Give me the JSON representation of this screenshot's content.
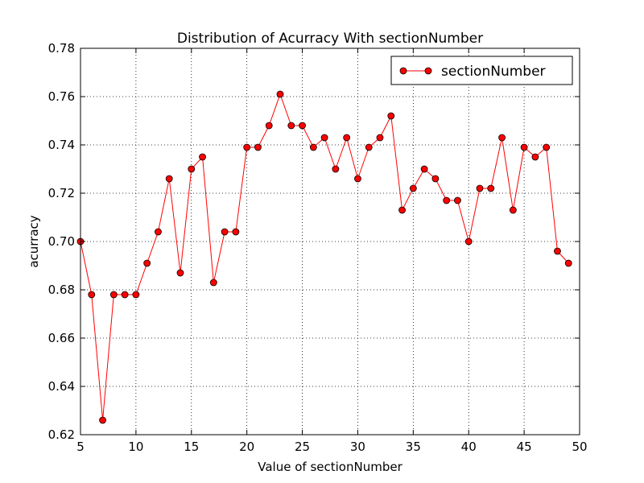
{
  "chart_data": {
    "type": "line",
    "title": "Distribution of Acurracy With sectionNumber",
    "xlabel": "Value of sectionNumber",
    "ylabel": "acurracy",
    "xlim": [
      5,
      50
    ],
    "ylim": [
      0.62,
      0.78
    ],
    "xticks": [
      "5",
      "10",
      "15",
      "20",
      "25",
      "30",
      "35",
      "40",
      "45",
      "50"
    ],
    "yticks": [
      "0.62",
      "0.64",
      "0.66",
      "0.68",
      "0.70",
      "0.72",
      "0.74",
      "0.76",
      "0.78"
    ],
    "grid": true,
    "legend_position": "top-right",
    "series": [
      {
        "name": "sectionNumber",
        "color": "#ff0000",
        "line_color": "#ff0000",
        "x": [
          5,
          6,
          7,
          8,
          9,
          10,
          11,
          12,
          13,
          14,
          15,
          16,
          17,
          18,
          19,
          20,
          21,
          22,
          23,
          24,
          25,
          26,
          27,
          28,
          29,
          30,
          31,
          32,
          33,
          34,
          35,
          36,
          37,
          38,
          39,
          40,
          41,
          42,
          43,
          44,
          45,
          46,
          47,
          48,
          49
        ],
        "y": [
          0.7,
          0.678,
          0.626,
          0.678,
          0.678,
          0.678,
          0.691,
          0.704,
          0.726,
          0.687,
          0.73,
          0.735,
          0.683,
          0.704,
          0.704,
          0.739,
          0.739,
          0.748,
          0.761,
          0.748,
          0.748,
          0.739,
          0.743,
          0.73,
          0.743,
          0.726,
          0.739,
          0.743,
          0.752,
          0.713,
          0.722,
          0.73,
          0.726,
          0.717,
          0.717,
          0.7,
          0.722,
          0.722,
          0.743,
          0.713,
          0.739,
          0.735,
          0.739,
          0.696,
          0.691
        ]
      }
    ]
  }
}
